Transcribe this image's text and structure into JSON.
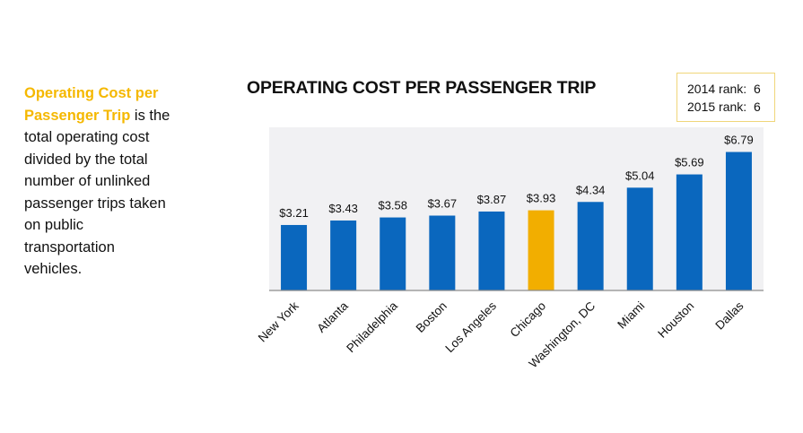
{
  "description": {
    "highlight": "Operating Cost per Passenger Trip",
    "lines_after": [
      " is the",
      "total operating cost",
      "divided by the total",
      "number of unlinked",
      "passenger trips taken",
      "on public",
      "transportation",
      "vehicles."
    ]
  },
  "rank_box": {
    "line1": "2014 rank:  6",
    "line2": "2015 rank:  6"
  },
  "colors": {
    "bar": "#0a67be",
    "highlight_bar": "#f2ae00",
    "plot_bg": "#f1f1f3",
    "axis": "#8c8c8c",
    "highlight_text": "#f5b800",
    "rank_border": "#f0d67a"
  },
  "chart_data": {
    "type": "bar",
    "title": "OPERATING COST PER PASSENGER TRIP",
    "xlabel": "",
    "ylabel": "",
    "ylim": [
      0,
      8
    ],
    "grid": false,
    "legend": "none",
    "categories": [
      "New York",
      "Atlanta",
      "Philadelphia",
      "Boston",
      "Los Angeles",
      "Chicago",
      "Washington, DC",
      "Miami",
      "Houston",
      "Dallas"
    ],
    "values": [
      3.21,
      3.43,
      3.58,
      3.67,
      3.87,
      3.93,
      4.34,
      5.04,
      5.69,
      6.79
    ],
    "data_labels": [
      "$3.21",
      "$3.43",
      "$3.58",
      "$3.67",
      "$3.87",
      "$3.93",
      "$4.34",
      "$5.04",
      "$5.69",
      "$6.79"
    ],
    "highlighted_category": "Chicago"
  }
}
